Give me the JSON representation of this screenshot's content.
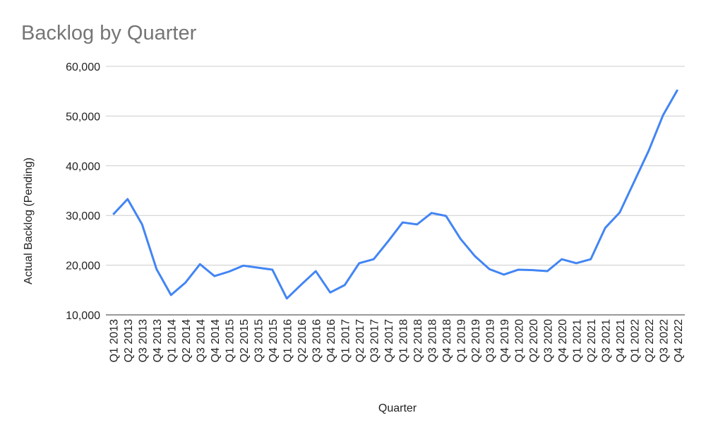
{
  "chart_data": {
    "type": "line",
    "title": "Backlog by Quarter",
    "x_label": "Quarter",
    "y_label": "Actual Backlog (Pending)",
    "categories": [
      "Q1 2013",
      "Q2 2013",
      "Q3 2013",
      "Q4 2013",
      "Q1 2014",
      "Q2 2014",
      "Q3 2014",
      "Q4 2014",
      "Q1 2015",
      "Q2 2015",
      "Q3 2015",
      "Q4 2015",
      "Q1 2016",
      "Q2 2016",
      "Q3 2016",
      "Q4 2016",
      "Q1 2017",
      "Q2 2017",
      "Q3 2017",
      "Q4 2017",
      "Q1 2018",
      "Q2 2018",
      "Q3 2018",
      "Q4 2018",
      "Q1 2019",
      "Q2 2019",
      "Q3 2019",
      "Q4 2019",
      "Q1 2020",
      "Q2 2020",
      "Q3 2020",
      "Q4 2020",
      "Q1 2021",
      "Q2 2021",
      "Q3 2021",
      "Q4 2021",
      "Q1 2022",
      "Q2 2022",
      "Q3 2022",
      "Q4 2022"
    ],
    "values": [
      30200,
      33300,
      28200,
      19200,
      14000,
      16500,
      20200,
      17800,
      18700,
      19900,
      19500,
      19100,
      13300,
      16100,
      18800,
      14500,
      16000,
      20400,
      21200,
      24800,
      28600,
      28200,
      30500,
      29900,
      25300,
      21800,
      19200,
      18100,
      19100,
      19000,
      18800,
      21200,
      20400,
      21200,
      27500,
      30600,
      36800,
      43000,
      50200,
      55300
    ],
    "color": "#4285f4",
    "ylim": [
      10000,
      60000
    ],
    "yticks": [
      {
        "value": 10000,
        "label": "10,000"
      },
      {
        "value": 20000,
        "label": "20,000"
      },
      {
        "value": 30000,
        "label": "30,000"
      },
      {
        "value": 40000,
        "label": "40,000"
      },
      {
        "value": 50000,
        "label": "50,000"
      },
      {
        "value": 60000,
        "label": "60,000"
      }
    ],
    "grid": true
  }
}
